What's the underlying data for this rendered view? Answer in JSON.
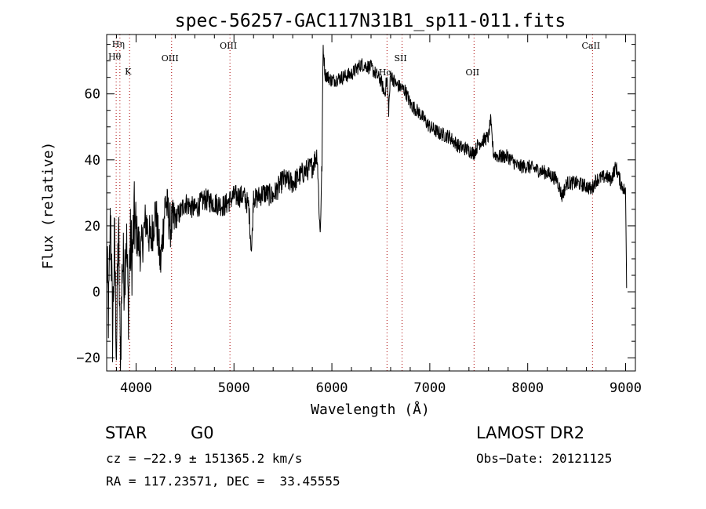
{
  "chart_data": {
    "type": "line",
    "title": "spec-56257-GAC117N31B1_sp11-011.fits",
    "xlabel": "Wavelength (Å)",
    "ylabel": "Flux (relative)",
    "xlim": [
      3700,
      9100
    ],
    "ylim": [
      -24,
      78
    ],
    "xticks": [
      4000,
      5000,
      6000,
      7000,
      8000,
      9000
    ],
    "yticks": [
      -20,
      0,
      20,
      40,
      60
    ],
    "grid": false,
    "series": [
      {
        "x": [
          3700,
          3720,
          3740,
          3760,
          3780,
          3800,
          3820,
          3840,
          3860,
          3880,
          3900,
          3920,
          3940,
          3960,
          3980,
          4000,
          4050,
          4100,
          4150,
          4200,
          4250,
          4300,
          4350,
          4400,
          4450,
          4500,
          4600,
          4700,
          4800,
          4900,
          5000,
          5100,
          5150,
          5180,
          5200,
          5220,
          5300,
          5400,
          5500,
          5600,
          5700,
          5800,
          5850,
          5880,
          5900,
          5910,
          5930,
          6000,
          6100,
          6200,
          6300,
          6400,
          6500,
          6540,
          6563,
          6580,
          6600,
          6650,
          6700,
          6750,
          6800,
          6900,
          7000,
          7100,
          7200,
          7300,
          7400,
          7450,
          7500,
          7550,
          7600,
          7620,
          7650,
          7700,
          7800,
          7900,
          8000,
          8100,
          8200,
          8300,
          8350,
          8400,
          8500,
          8600,
          8650,
          8700,
          8800,
          8850,
          8900,
          8950,
          9000,
          9010
        ],
        "y": [
          10,
          -8,
          25,
          -12,
          15,
          -18,
          20,
          -22,
          10,
          5,
          18,
          -5,
          15,
          10,
          22,
          18,
          12,
          22,
          15,
          25,
          8,
          28,
          20,
          22,
          24,
          27,
          25,
          28,
          27,
          26,
          29,
          29,
          26,
          12,
          30,
          28,
          30,
          29,
          34,
          33,
          36,
          38,
          42,
          17,
          40,
          75,
          66,
          64,
          65,
          66,
          69,
          68,
          64,
          60,
          65,
          55,
          66,
          63,
          62,
          61,
          57,
          54,
          50,
          48,
          47,
          44,
          43,
          42,
          45,
          46,
          47,
          52,
          42,
          41,
          41,
          38,
          38,
          37,
          36,
          34,
          29,
          33,
          33,
          32,
          31,
          34,
          35,
          34,
          38,
          33,
          30,
          2
        ]
      }
    ],
    "annotations": [
      {
        "label": "Hη",
        "x": 3835
      },
      {
        "label": "Hθ",
        "x": 3797
      },
      {
        "label": "K",
        "x": 3934
      },
      {
        "label": "OIII",
        "x": 4363
      },
      {
        "label": "OIII",
        "x": 4959
      },
      {
        "label": "Hα",
        "x": 6563
      },
      {
        "label": "SII",
        "x": 6717
      },
      {
        "label": "OII",
        "x": 7452
      },
      {
        "label": "CaII",
        "x": 8662
      }
    ]
  },
  "footer": {
    "object_class": "STAR",
    "subclass": "G0",
    "survey": "LAMOST DR2",
    "cz": "cz = −22.9 ± 151365.2 km/s",
    "obs_date": "Obs−Date: 20121125",
    "coords": "RA = 117.23571, DEC =  33.45555"
  }
}
